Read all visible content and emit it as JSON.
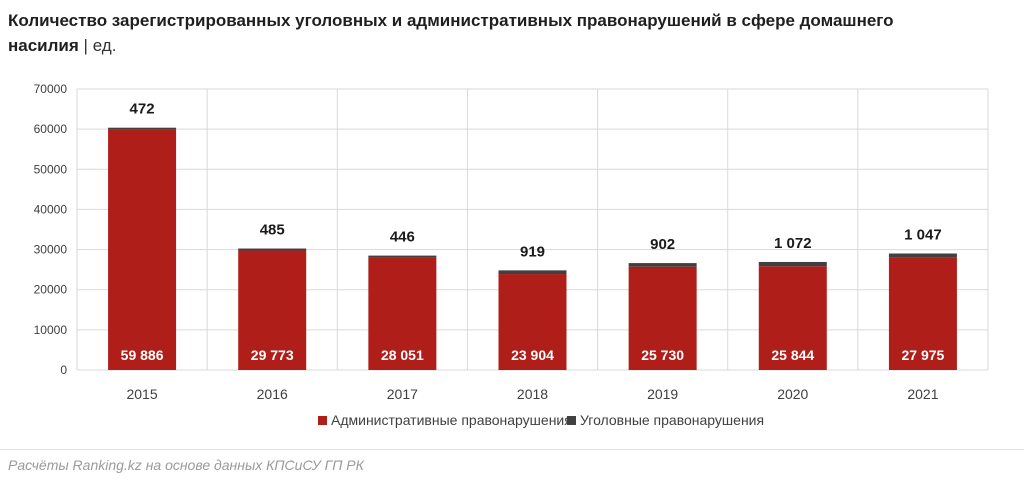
{
  "title": {
    "main": "Количество зарегистрированных уголовных и административных правонарушений в сфере домашнего насилия",
    "separator": "|",
    "unit": "ед."
  },
  "source": "Расчёты Ranking.kz на основе данных КПСиСУ ГП РК",
  "colors": {
    "administrative": "#b01e1a",
    "criminal": "#404040",
    "grid": "#d9d9d9",
    "axis_text": "#404040"
  },
  "chart_data": {
    "type": "bar",
    "stacked": true,
    "categories": [
      "2015",
      "2016",
      "2017",
      "2018",
      "2019",
      "2020",
      "2021"
    ],
    "series": [
      {
        "name": "Административные правонарушения",
        "values": [
          59886,
          29773,
          28051,
          23904,
          25730,
          25844,
          27975
        ],
        "labels": [
          "59 886",
          "29 773",
          "28 051",
          "23 904",
          "25 730",
          "25 844",
          "27 975"
        ]
      },
      {
        "name": "Уголовные правонарушения",
        "values": [
          472,
          485,
          446,
          919,
          902,
          1072,
          1047
        ],
        "labels": [
          "472",
          "485",
          "446",
          "919",
          "902",
          "1 072",
          "1 047"
        ]
      }
    ],
    "ylim": [
      0,
      70000
    ],
    "yticks": [
      "0",
      "10000",
      "20000",
      "30000",
      "40000",
      "50000",
      "60000",
      "70000"
    ],
    "ytick_values": [
      0,
      10000,
      20000,
      30000,
      40000,
      50000,
      60000,
      70000
    ],
    "grid": true,
    "legend_position": "bottom-center"
  }
}
